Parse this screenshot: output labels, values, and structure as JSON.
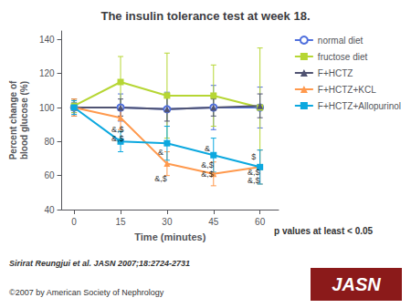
{
  "chart_data": {
    "type": "line",
    "title": "The insulin tolerance test at week 18.",
    "xlabel": "Time (minutes)",
    "ylabel": "Percent change of\nblood glucose (%)",
    "x": [
      0,
      15,
      30,
      45,
      60
    ],
    "series": [
      {
        "name": "normal diet",
        "values": [
          100,
          100,
          99,
          100,
          100
        ],
        "yerr": [
          3,
          8,
          10,
          13,
          12
        ],
        "marker": "circle"
      },
      {
        "name": "fructose diet",
        "values": [
          101,
          115,
          107,
          107,
          100
        ],
        "yerr": [
          4,
          15,
          25,
          18,
          35
        ],
        "marker": "square"
      },
      {
        "name": "F+HCTZ",
        "values": [
          100,
          100,
          99,
          100,
          101
        ],
        "yerr": [
          5,
          5,
          7,
          5,
          7
        ],
        "marker": "triangle"
      },
      {
        "name": "F+HCTZ+KCL",
        "values": [
          100,
          94,
          67,
          61,
          65
        ],
        "yerr": [
          5,
          7,
          7,
          7,
          10
        ],
        "marker": "triangle"
      },
      {
        "name": "F+HCTZ+Allopurinol",
        "values": [
          100,
          80,
          79,
          72,
          65
        ],
        "yerr": [
          4,
          6,
          10,
          10,
          10
        ],
        "marker": "square"
      }
    ],
    "xlim": [
      -4,
      66
    ],
    "xticks": [
      0,
      15,
      30,
      45,
      60
    ],
    "ylim": [
      40,
      145
    ],
    "yticks": [
      40,
      60,
      80,
      100,
      120,
      140
    ],
    "grid": false,
    "legend": "right",
    "annotations": [
      {
        "text": "&,$",
        "x": 14,
        "y": 87
      },
      {
        "text": "&,$",
        "x": 14,
        "y": 82
      },
      {
        "text": "&",
        "x": 28,
        "y": 74
      },
      {
        "text": "&,$",
        "x": 28,
        "y": 58
      },
      {
        "text": "&",
        "x": 43,
        "y": 76
      },
      {
        "text": "&,$",
        "x": 43,
        "y": 66
      },
      {
        "text": "&,$",
        "x": 43,
        "y": 61
      },
      {
        "text": "$",
        "x": 58,
        "y": 71
      },
      {
        "text": "&,$",
        "x": 58,
        "y": 62
      },
      {
        "text": "&,$",
        "x": 58,
        "y": 57
      }
    ],
    "p_label": "p values at least < 0.05",
    "footnote": "Sirirat Reungjui et al. JASN 2007;18:2724-2731",
    "copyright": "©2007 by American Society of Nephrology",
    "logo": {
      "text": "JASN",
      "color": "#8B1A1A"
    }
  }
}
